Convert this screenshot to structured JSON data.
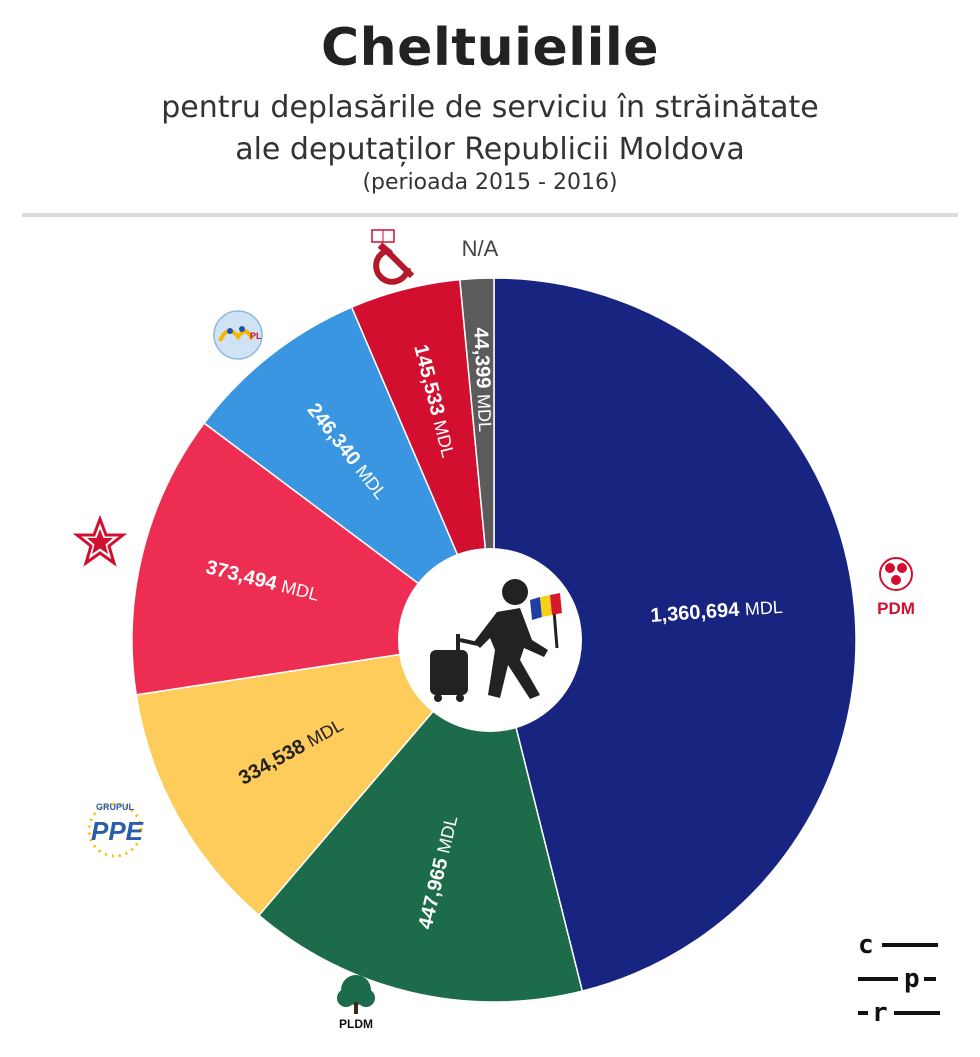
{
  "header": {
    "title": "Cheltuielile",
    "subtitle_line1": "pentru deplasările de serviciu în străinătate",
    "subtitle_line2": "ale deputaților Republicii Moldova",
    "period": "(perioada 2015 - 2016)"
  },
  "chart_data": {
    "type": "pie",
    "title": "Cheltuielile",
    "subtitle": "pentru deplasările de serviciu în străinătate ale deputaților Republicii Moldova (perioada 2015 - 2016)",
    "unit": "MDL",
    "slices": [
      {
        "party": "PDM",
        "value": 1360694,
        "value_label": "1,360,694",
        "unit_label": "MDL",
        "color": "#172480"
      },
      {
        "party": "PLDM",
        "value": 447965,
        "value_label": "447,965",
        "unit_label": "MDL",
        "color": "#1c6b4a"
      },
      {
        "party": "PPE",
        "value": 334538,
        "value_label": "334,538",
        "unit_label": "MDL",
        "color": "#fdcc5b"
      },
      {
        "party": "PSRM",
        "value": 373494,
        "value_label": "373,494",
        "unit_label": "MDL",
        "color": "#ed2d52"
      },
      {
        "party": "PL",
        "value": 246340,
        "value_label": "246,340",
        "unit_label": "MDL",
        "color": "#3a96e0"
      },
      {
        "party": "PCRM",
        "value": 145533,
        "value_label": "145,533",
        "unit_label": "MDL",
        "color": "#d20f2f"
      },
      {
        "party": "N/A",
        "value": 44399,
        "value_label": "44,399",
        "unit_label": "MDL",
        "color": "#5b5b5b"
      }
    ]
  },
  "legend_labels": {
    "na": "N/A",
    "pdm": "PDM",
    "pldm": "PLDM",
    "ppe_group": "GRUPUL",
    "ppe": "PPE",
    "pl": "PL"
  },
  "branding": {
    "c": "c",
    "p": "p",
    "r": "r"
  },
  "center_icon": "traveler-with-suitcase-and-moldova-flag-icon"
}
